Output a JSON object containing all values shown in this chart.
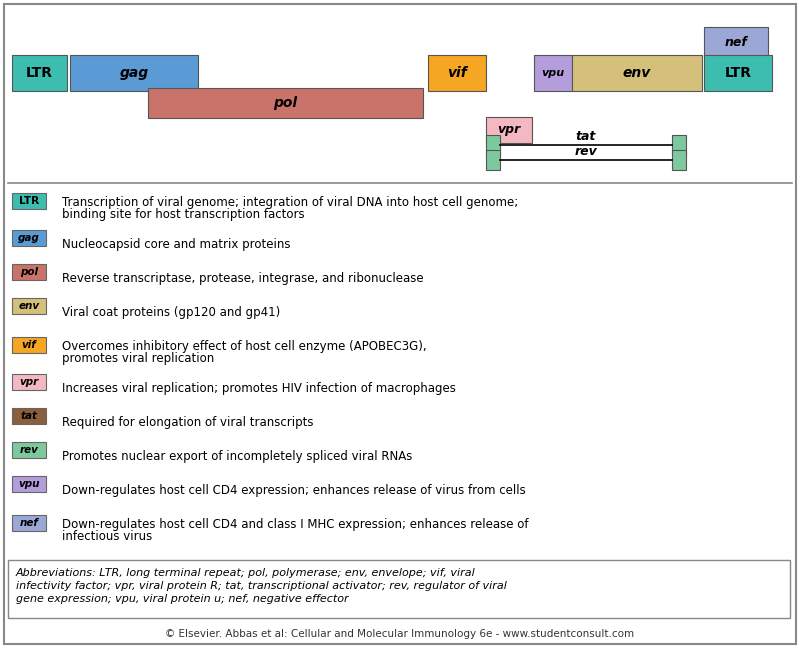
{
  "bg_color": "#ffffff",
  "diagram": {
    "ltr_color": "#3dbdb0",
    "gag_color": "#5b9bd5",
    "pol_color": "#c9736a",
    "vif_color": "#f5a623",
    "vpr_color": "#f4b8c1",
    "vpu_color": "#b39ddb",
    "env_color": "#d4c07a",
    "tat_color": "#8b5e3c",
    "rev_color": "#7ec89e",
    "nef_color": "#9ba8d6"
  },
  "legend_items": [
    {
      "label": "LTR",
      "color": "#3dbdb0",
      "italic": false,
      "lines": [
        "Transcription of viral genome; integration of viral DNA into host cell genome;",
        "binding site for host transcription factors"
      ]
    },
    {
      "label": "gag",
      "color": "#5b9bd5",
      "italic": true,
      "lines": [
        "Nucleocapsid core and matrix proteins"
      ]
    },
    {
      "label": "pol",
      "color": "#c9736a",
      "italic": true,
      "lines": [
        "Reverse transcriptase, protease, integrase, and ribonuclease"
      ]
    },
    {
      "label": "env",
      "color": "#d4c07a",
      "italic": true,
      "lines": [
        "Viral coat proteins (gp120 and gp41)"
      ]
    },
    {
      "label": "vif",
      "color": "#f5a623",
      "italic": true,
      "lines": [
        "Overcomes inhibitory effect of host cell enzyme (APOBEC3G),",
        "promotes viral replication"
      ]
    },
    {
      "label": "vpr",
      "color": "#f4b8c1",
      "italic": true,
      "lines": [
        "Increases viral replication; promotes HIV infection of macrophages"
      ]
    },
    {
      "label": "tat",
      "color": "#8b5e3c",
      "italic": true,
      "lines": [
        "Required for elongation of viral transcripts"
      ]
    },
    {
      "label": "rev",
      "color": "#7ec89e",
      "italic": true,
      "lines": [
        "Promotes nuclear export of incompletely spliced viral RNAs"
      ]
    },
    {
      "label": "vpu",
      "color": "#b39ddb",
      "italic": true,
      "lines": [
        "Down-regulates host cell CD4 expression; enhances release of virus from cells"
      ]
    },
    {
      "label": "nef",
      "color": "#9ba8d6",
      "italic": true,
      "lines": [
        "Down-regulates host cell CD4 and class I MHC expression; enhances release of",
        "infectious virus"
      ]
    }
  ],
  "abbrev_lines": [
    "Abbreviations: LTR, long terminal repeat; pol, polymerase; env, envelope; vif, viral",
    "infectivity factor; vpr, viral protein R; tat, transcriptional activator; rev, regulator of viral",
    "gene expression; vpu, viral protein u; nef, negative effector"
  ],
  "footer": "© Elsevier. Abbas et al: Cellular and Molecular Immunology 6e - www.studentconsult.com"
}
